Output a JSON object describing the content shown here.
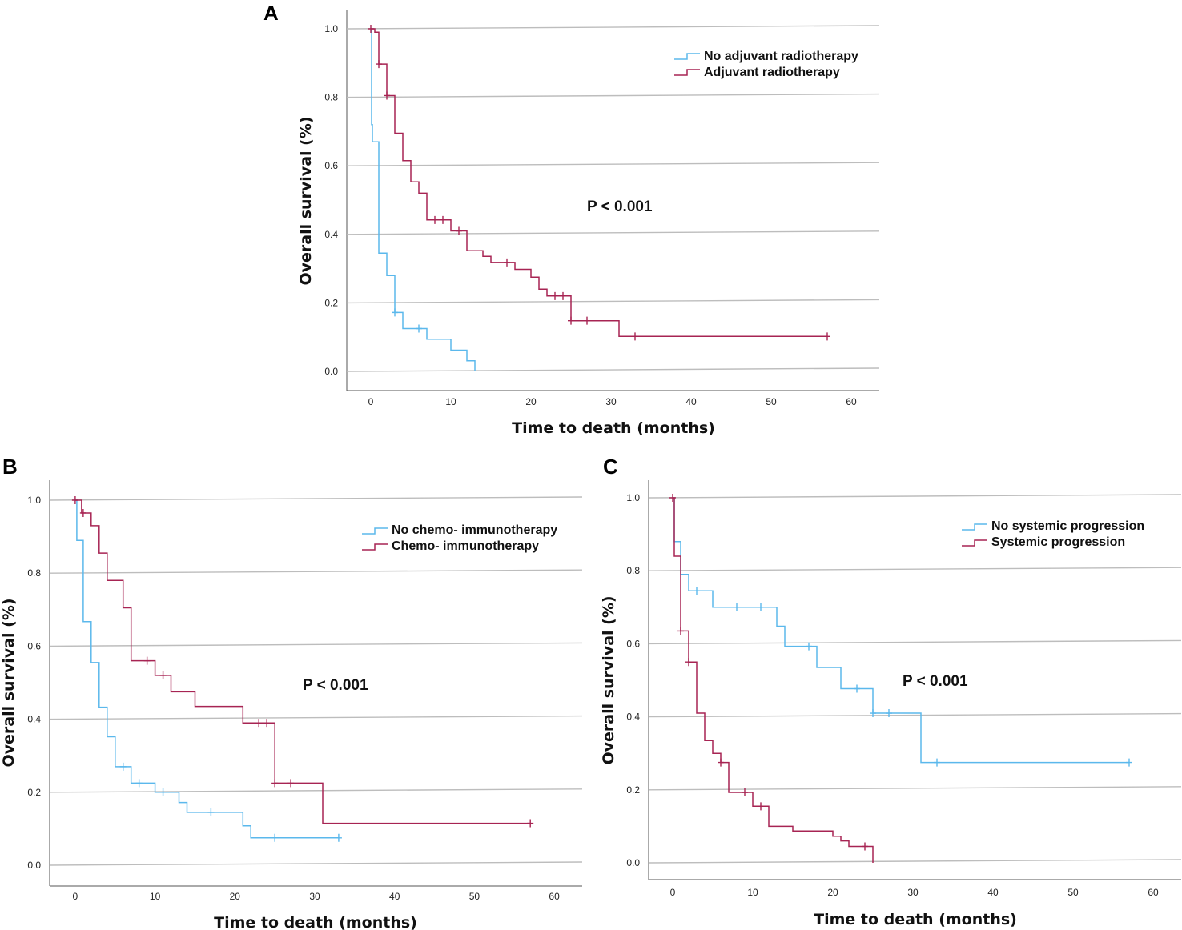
{
  "colors": {
    "blue": "#5bb8ec",
    "red": "#a72453",
    "grid": "#bdbdbd"
  },
  "chart_data": [
    {
      "type": "line",
      "panel_label": "A",
      "xlabel": "Time to death (months)",
      "ylabel": "Overall survival (%)",
      "xticks": [
        "0",
        "10",
        "20",
        "30",
        "40",
        "50",
        "60"
      ],
      "yticks": [
        "0.0",
        "0.2",
        "0.4",
        "0.6",
        "0.8",
        "1.0"
      ],
      "xlim": [
        -3,
        63.5
      ],
      "ylim": [
        -0.055,
        1.055
      ],
      "annotation": "P < 0.001",
      "series": [
        {
          "name": "No adjuvant radiotherapy",
          "color": "blue",
          "steps": [
            [
              0,
              1.0
            ],
            [
              0.1,
              0.72
            ],
            [
              0.2,
              0.67
            ],
            [
              1,
              0.345
            ],
            [
              2,
              0.28
            ],
            [
              3,
              0.172
            ],
            [
              4,
              0.125
            ],
            [
              7,
              0.094
            ],
            [
              10,
              0.062
            ],
            [
              12,
              0.031
            ],
            [
              13,
              0.0
            ]
          ],
          "censored": [
            [
              3,
              0.172
            ],
            [
              6,
              0.125
            ]
          ]
        },
        {
          "name": "Adjuvant radiotherapy",
          "color": "red",
          "steps": [
            [
              0,
              1.0
            ],
            [
              0.5,
              0.99
            ],
            [
              1,
              0.897
            ],
            [
              2,
              0.805
            ],
            [
              3,
              0.695
            ],
            [
              4,
              0.615
            ],
            [
              5,
              0.553
            ],
            [
              6,
              0.52
            ],
            [
              7,
              0.442
            ],
            [
              10,
              0.41
            ],
            [
              12,
              0.352
            ],
            [
              14,
              0.336
            ],
            [
              15,
              0.318
            ],
            [
              18,
              0.298
            ],
            [
              20,
              0.275
            ],
            [
              21,
              0.24
            ],
            [
              22,
              0.22
            ],
            [
              25,
              0.148
            ],
            [
              31,
              0.102
            ]
          ],
          "censored": [
            [
              0,
              1.0
            ],
            [
              1,
              0.897
            ],
            [
              2,
              0.805
            ],
            [
              8,
              0.442
            ],
            [
              9,
              0.442
            ],
            [
              11,
              0.41
            ],
            [
              17,
              0.318
            ],
            [
              23,
              0.22
            ],
            [
              24,
              0.22
            ],
            [
              25,
              0.148
            ],
            [
              27,
              0.148
            ],
            [
              33,
              0.102
            ],
            [
              57,
              0.102
            ]
          ]
        }
      ]
    },
    {
      "type": "line",
      "panel_label": "B",
      "xlabel": "Time to death (months)",
      "ylabel": "Overall survival (%)",
      "xticks": [
        "0",
        "10",
        "20",
        "30",
        "40",
        "50",
        "60"
      ],
      "yticks": [
        "0.0",
        "0.2",
        "0.4",
        "0.6",
        "0.8",
        "1.0"
      ],
      "xlim": [
        -3.2,
        63.5
      ],
      "ylim": [
        -0.055,
        1.055
      ],
      "annotation": "P < 0.001",
      "series": [
        {
          "name": "No chemo- immunotherapy",
          "color": "blue",
          "steps": [
            [
              0,
              1.0
            ],
            [
              0.2,
              0.89
            ],
            [
              1,
              0.667
            ],
            [
              2,
              0.555
            ],
            [
              3,
              0.433
            ],
            [
              4,
              0.352
            ],
            [
              5,
              0.27
            ],
            [
              7,
              0.225
            ],
            [
              10,
              0.2
            ],
            [
              13,
              0.172
            ],
            [
              14,
              0.145
            ],
            [
              21,
              0.108
            ],
            [
              22,
              0.075
            ]
          ],
          "censored": [
            [
              6,
              0.27
            ],
            [
              8,
              0.225
            ],
            [
              11,
              0.2
            ],
            [
              17,
              0.145
            ],
            [
              25,
              0.075
            ],
            [
              33,
              0.075
            ]
          ]
        },
        {
          "name": "Chemo- immunotherapy",
          "color": "red",
          "steps": [
            [
              0,
              1.0
            ],
            [
              0.8,
              0.965
            ],
            [
              2,
              0.93
            ],
            [
              3,
              0.855
            ],
            [
              4,
              0.78
            ],
            [
              6,
              0.705
            ],
            [
              7,
              0.56
            ],
            [
              10,
              0.52
            ],
            [
              12,
              0.475
            ],
            [
              15,
              0.435
            ],
            [
              21,
              0.39
            ],
            [
              25,
              0.225
            ],
            [
              31,
              0.115
            ]
          ],
          "censored": [
            [
              0,
              1.0
            ],
            [
              1,
              0.965
            ],
            [
              9,
              0.56
            ],
            [
              11,
              0.52
            ],
            [
              23,
              0.39
            ],
            [
              24,
              0.39
            ],
            [
              25,
              0.225
            ],
            [
              27,
              0.225
            ],
            [
              57,
              0.115
            ]
          ]
        }
      ]
    },
    {
      "type": "line",
      "panel_label": "C",
      "xlabel": "Time to death (months)",
      "ylabel": "Overall survival (%)",
      "xticks": [
        "0",
        "10",
        "20",
        "30",
        "40",
        "50",
        "60"
      ],
      "yticks": [
        "0.0",
        "0.2",
        "0.4",
        "0.6",
        "0.8",
        "1.0"
      ],
      "xlim": [
        -3,
        63.5
      ],
      "ylim": [
        -0.055,
        1.055
      ],
      "annotation": "P < 0.001",
      "series": [
        {
          "name": "No systemic progression",
          "color": "blue",
          "steps": [
            [
              0,
              1.0
            ],
            [
              0.2,
              0.88
            ],
            [
              1,
              0.79
            ],
            [
              2,
              0.745
            ],
            [
              5,
              0.7
            ],
            [
              13,
              0.648
            ],
            [
              14,
              0.593
            ],
            [
              18,
              0.535
            ],
            [
              21,
              0.477
            ],
            [
              25,
              0.41
            ],
            [
              31,
              0.275
            ]
          ],
          "censored": [
            [
              3,
              0.745
            ],
            [
              8,
              0.7
            ],
            [
              11,
              0.7
            ],
            [
              17,
              0.593
            ],
            [
              23,
              0.477
            ],
            [
              25,
              0.41
            ],
            [
              27,
              0.41
            ],
            [
              33,
              0.275
            ],
            [
              57,
              0.275
            ]
          ]
        },
        {
          "name": "Systemic progression",
          "color": "red",
          "steps": [
            [
              0,
              1.0
            ],
            [
              0.2,
              0.84
            ],
            [
              1,
              0.635
            ],
            [
              2,
              0.55
            ],
            [
              3,
              0.41
            ],
            [
              4,
              0.335
            ],
            [
              5,
              0.3
            ],
            [
              6,
              0.275
            ],
            [
              7,
              0.193
            ],
            [
              10,
              0.155
            ],
            [
              12,
              0.1
            ],
            [
              15,
              0.087
            ],
            [
              20,
              0.073
            ],
            [
              21,
              0.06
            ],
            [
              22,
              0.045
            ],
            [
              25,
              0.0
            ]
          ],
          "censored": [
            [
              0,
              1.0
            ],
            [
              1,
              0.635
            ],
            [
              2,
              0.55
            ],
            [
              6,
              0.275
            ],
            [
              9,
              0.193
            ],
            [
              11,
              0.155
            ],
            [
              24,
              0.045
            ]
          ]
        }
      ]
    }
  ]
}
